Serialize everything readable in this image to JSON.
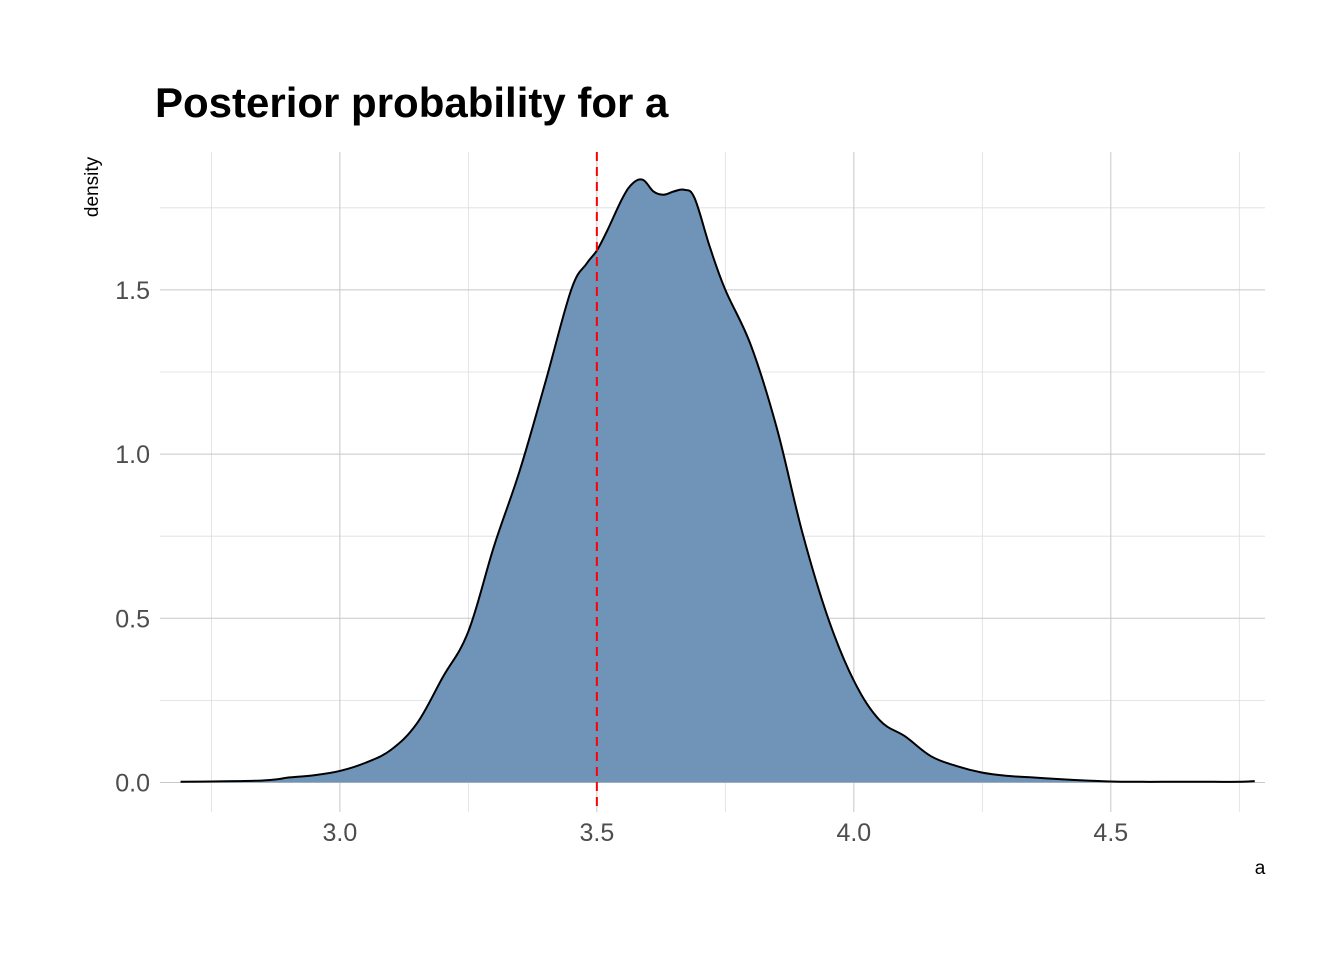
{
  "chart_data": {
    "type": "area",
    "title": "Posterior probability for a",
    "xlabel": "a",
    "ylabel": "density",
    "xlim": [
      2.65,
      4.8
    ],
    "ylim": [
      -0.09,
      1.92
    ],
    "x_ticks": [
      3.0,
      3.5,
      4.0,
      4.5
    ],
    "x_tick_labels": [
      "3.0",
      "3.5",
      "4.0",
      "4.5"
    ],
    "y_ticks": [
      0.0,
      0.5,
      1.0,
      1.5
    ],
    "y_tick_labels": [
      "0.0",
      "0.5",
      "1.0",
      "1.5"
    ],
    "grid": true,
    "legend": "none",
    "reference_line": {
      "x": 3.5,
      "color": "#ff0000",
      "style": "dashed"
    },
    "fill_color": "#6f94b8",
    "line_color": "#000000",
    "x": [
      2.69,
      2.75,
      2.8,
      2.85,
      2.88,
      2.9,
      2.95,
      3.0,
      3.05,
      3.1,
      3.15,
      3.2,
      3.25,
      3.3,
      3.35,
      3.4,
      3.45,
      3.48,
      3.5,
      3.52,
      3.55,
      3.57,
      3.59,
      3.61,
      3.63,
      3.65,
      3.67,
      3.69,
      3.72,
      3.75,
      3.8,
      3.85,
      3.9,
      3.95,
      4.0,
      4.05,
      4.1,
      4.15,
      4.2,
      4.25,
      4.3,
      4.35,
      4.4,
      4.45,
      4.5,
      4.55,
      4.6,
      4.65,
      4.7,
      4.75,
      4.78
    ],
    "y": [
      0.002,
      0.003,
      0.004,
      0.006,
      0.01,
      0.015,
      0.022,
      0.035,
      0.06,
      0.1,
      0.18,
      0.32,
      0.46,
      0.72,
      0.95,
      1.22,
      1.5,
      1.58,
      1.62,
      1.68,
      1.78,
      1.825,
      1.835,
      1.8,
      1.79,
      1.8,
      1.805,
      1.78,
      1.63,
      1.5,
      1.33,
      1.08,
      0.76,
      0.5,
      0.31,
      0.19,
      0.14,
      0.08,
      0.05,
      0.03,
      0.02,
      0.015,
      0.01,
      0.006,
      0.003,
      0.002,
      0.002,
      0.002,
      0.002,
      0.002,
      0.004
    ]
  }
}
